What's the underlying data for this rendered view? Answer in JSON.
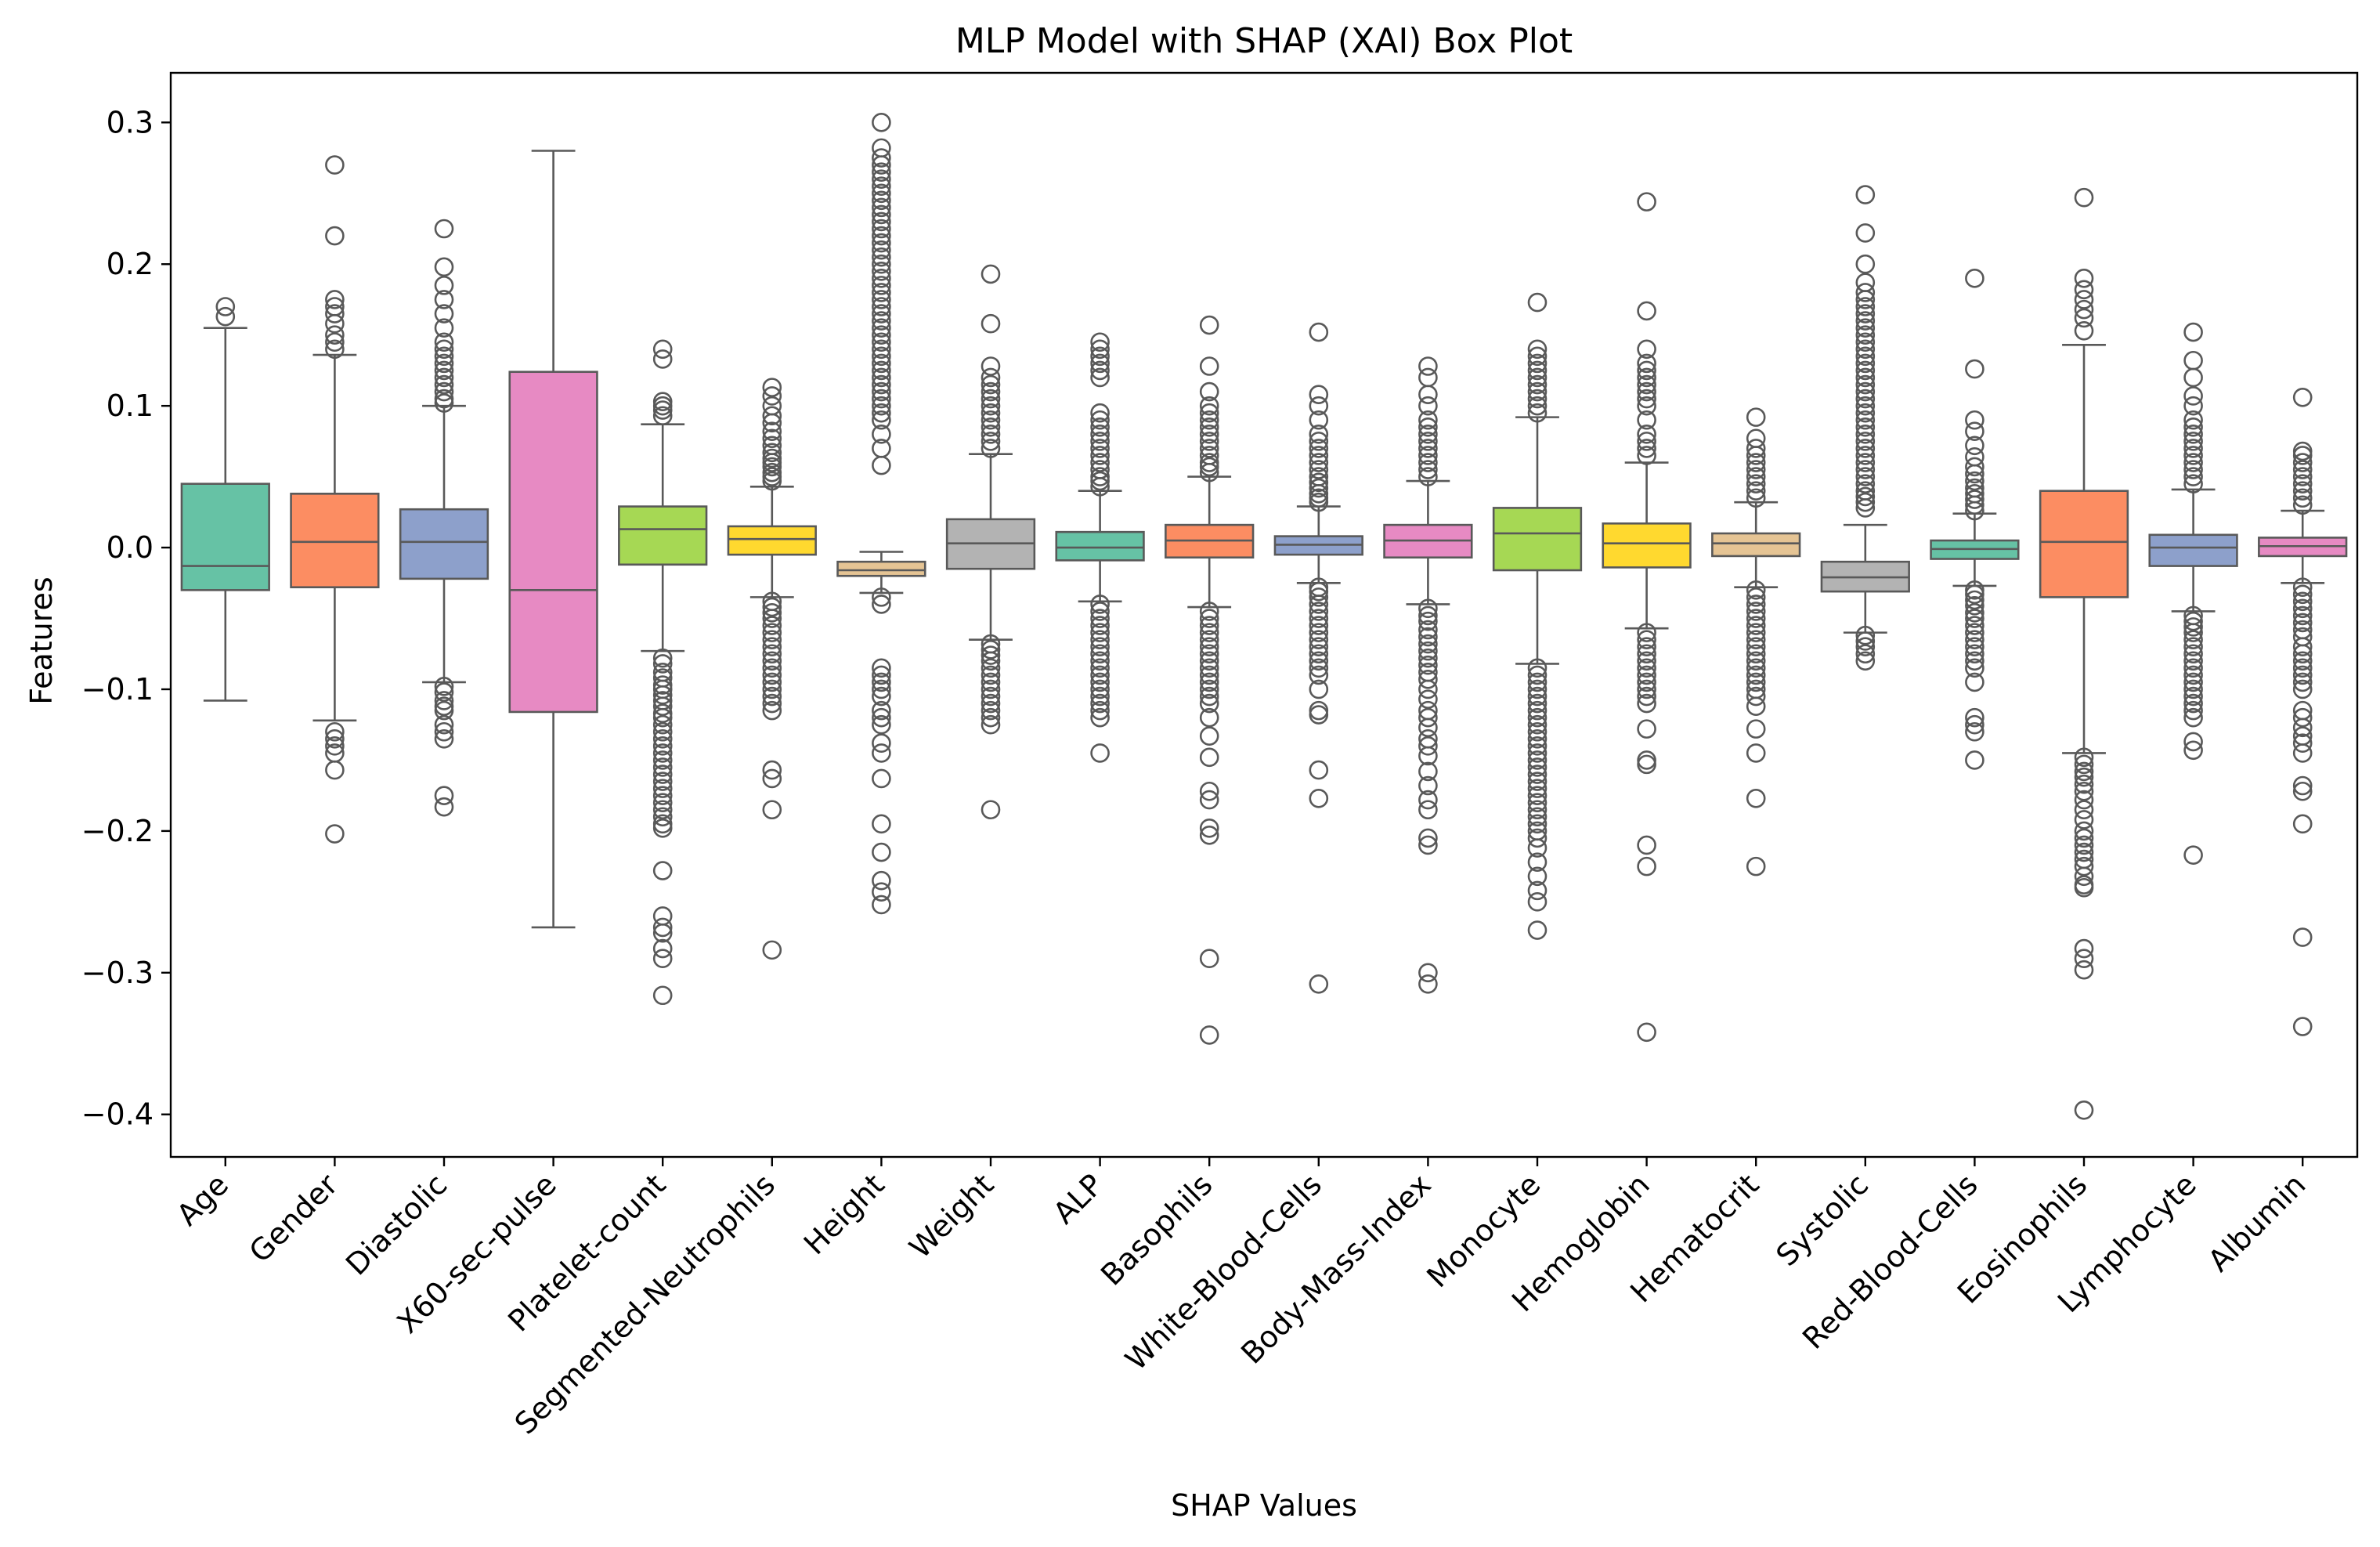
{
  "chart_data": {
    "type": "box",
    "title": "MLP Model with SHAP (XAI) Box Plot",
    "xlabel": "SHAP Values",
    "ylabel": "Features",
    "ylim": [
      -0.43,
      0.335
    ],
    "yticks": [
      0.3,
      0.2,
      0.1,
      0.0,
      -0.1,
      -0.2,
      -0.3,
      -0.4
    ],
    "ytick_labels": [
      "0.3",
      "0.2",
      "0.1",
      "0.0",
      "−0.1",
      "−0.2",
      "−0.3",
      "−0.4"
    ],
    "grid": false,
    "series": [
      {
        "category": "Age",
        "color": "#66c2a5",
        "q1": -0.03,
        "median": -0.013,
        "q3": 0.045,
        "whisker_low": -0.108,
        "whisker_high": 0.155,
        "outliers": [
          0.163,
          0.17
        ]
      },
      {
        "category": "Gender",
        "color": "#fc8d62",
        "q1": -0.028,
        "median": 0.004,
        "q3": 0.038,
        "whisker_low": -0.122,
        "whisker_high": 0.136,
        "outliers": [
          0.14,
          0.145,
          0.15,
          0.158,
          0.165,
          0.17,
          0.175,
          0.22,
          0.27,
          -0.13,
          -0.135,
          -0.14,
          -0.145,
          -0.157,
          -0.202
        ]
      },
      {
        "category": "Diastolic",
        "color": "#8da0cb",
        "q1": -0.022,
        "median": 0.004,
        "q3": 0.027,
        "whisker_low": -0.095,
        "whisker_high": 0.1,
        "outliers": [
          0.102,
          0.105,
          0.11,
          0.115,
          0.12,
          0.125,
          0.13,
          0.135,
          0.14,
          0.145,
          0.155,
          0.165,
          0.175,
          0.185,
          0.198,
          0.225,
          -0.098,
          -0.102,
          -0.108,
          -0.112,
          -0.115,
          -0.125,
          -0.13,
          -0.135,
          -0.175,
          -0.183
        ]
      },
      {
        "category": "X60-sec-pulse",
        "color": "#e78ac3",
        "q1": -0.116,
        "median": -0.03,
        "q3": 0.124,
        "whisker_low": -0.268,
        "whisker_high": 0.28,
        "outliers": []
      },
      {
        "category": "Platelet-count",
        "color": "#a6d854",
        "q1": -0.012,
        "median": 0.013,
        "q3": 0.029,
        "whisker_low": -0.073,
        "whisker_high": 0.087,
        "outliers": [
          0.093,
          0.097,
          0.1,
          0.103,
          0.133,
          0.14,
          -0.078,
          -0.082,
          -0.088,
          -0.092,
          -0.097,
          -0.1,
          -0.104,
          -0.108,
          -0.112,
          -0.117,
          -0.12,
          -0.125,
          -0.13,
          -0.135,
          -0.14,
          -0.145,
          -0.15,
          -0.155,
          -0.16,
          -0.165,
          -0.17,
          -0.175,
          -0.18,
          -0.185,
          -0.19,
          -0.195,
          -0.198,
          -0.228,
          -0.26,
          -0.268,
          -0.272,
          -0.283,
          -0.29,
          -0.316
        ]
      },
      {
        "category": "Segmented-Neutrophils",
        "color": "#ffd92f",
        "q1": -0.005,
        "median": 0.006,
        "q3": 0.015,
        "whisker_low": -0.035,
        "whisker_high": 0.043,
        "outliers": [
          0.047,
          0.05,
          0.053,
          0.057,
          0.06,
          0.063,
          0.067,
          0.072,
          0.077,
          0.082,
          0.088,
          0.093,
          0.1,
          0.107,
          0.113,
          -0.038,
          -0.042,
          -0.046,
          -0.05,
          -0.055,
          -0.06,
          -0.065,
          -0.07,
          -0.075,
          -0.08,
          -0.085,
          -0.09,
          -0.095,
          -0.1,
          -0.105,
          -0.11,
          -0.115,
          -0.157,
          -0.163,
          -0.185,
          -0.284
        ]
      },
      {
        "category": "Height",
        "color": "#e5c494",
        "q1": -0.02,
        "median": -0.016,
        "q3": -0.01,
        "whisker_low": -0.032,
        "whisker_high": -0.003,
        "outliers": [
          0.058,
          0.07,
          0.08,
          0.09,
          0.095,
          0.1,
          0.105,
          0.11,
          0.115,
          0.12,
          0.125,
          0.13,
          0.135,
          0.14,
          0.145,
          0.15,
          0.155,
          0.16,
          0.165,
          0.17,
          0.175,
          0.18,
          0.185,
          0.19,
          0.195,
          0.2,
          0.205,
          0.21,
          0.215,
          0.22,
          0.225,
          0.23,
          0.235,
          0.24,
          0.245,
          0.25,
          0.255,
          0.26,
          0.265,
          0.27,
          0.275,
          0.282,
          0.3,
          -0.035,
          -0.04,
          -0.085,
          -0.09,
          -0.095,
          -0.1,
          -0.105,
          -0.115,
          -0.12,
          -0.125,
          -0.138,
          -0.145,
          -0.163,
          -0.195,
          -0.215,
          -0.235,
          -0.243,
          -0.252
        ]
      },
      {
        "category": "Weight",
        "color": "#b3b3b3",
        "q1": -0.015,
        "median": 0.003,
        "q3": 0.02,
        "whisker_low": -0.065,
        "whisker_high": 0.066,
        "outliers": [
          0.07,
          0.075,
          0.08,
          0.085,
          0.09,
          0.095,
          0.1,
          0.105,
          0.11,
          0.115,
          0.12,
          0.128,
          0.158,
          0.193,
          -0.068,
          -0.072,
          -0.076,
          -0.08,
          -0.085,
          -0.09,
          -0.095,
          -0.1,
          -0.105,
          -0.11,
          -0.115,
          -0.12,
          -0.125,
          -0.185
        ]
      },
      {
        "category": "ALP",
        "color": "#66c2a5",
        "q1": -0.009,
        "median": 0.0,
        "q3": 0.011,
        "whisker_low": -0.038,
        "whisker_high": 0.04,
        "outliers": [
          0.043,
          0.047,
          0.05,
          0.055,
          0.06,
          0.065,
          0.07,
          0.075,
          0.08,
          0.085,
          0.09,
          0.095,
          0.12,
          0.125,
          0.13,
          0.135,
          0.14,
          0.145,
          -0.04,
          -0.045,
          -0.05,
          -0.055,
          -0.06,
          -0.065,
          -0.07,
          -0.075,
          -0.08,
          -0.085,
          -0.09,
          -0.095,
          -0.1,
          -0.105,
          -0.11,
          -0.115,
          -0.12,
          -0.145
        ]
      },
      {
        "category": "Basophils",
        "color": "#fc8d62",
        "q1": -0.007,
        "median": 0.005,
        "q3": 0.016,
        "whisker_low": -0.042,
        "whisker_high": 0.05,
        "outliers": [
          0.053,
          0.057,
          0.06,
          0.065,
          0.07,
          0.075,
          0.08,
          0.085,
          0.09,
          0.095,
          0.1,
          0.11,
          0.128,
          0.157,
          -0.045,
          -0.05,
          -0.055,
          -0.06,
          -0.065,
          -0.07,
          -0.075,
          -0.08,
          -0.085,
          -0.09,
          -0.095,
          -0.1,
          -0.105,
          -0.11,
          -0.12,
          -0.133,
          -0.148,
          -0.172,
          -0.178,
          -0.198,
          -0.203,
          -0.29,
          -0.344
        ]
      },
      {
        "category": "White-Blood-Cells",
        "color": "#8da0cb",
        "q1": -0.005,
        "median": 0.002,
        "q3": 0.008,
        "whisker_low": -0.025,
        "whisker_high": 0.029,
        "outliers": [
          0.032,
          0.035,
          0.038,
          0.042,
          0.046,
          0.05,
          0.055,
          0.06,
          0.065,
          0.07,
          0.075,
          0.08,
          0.09,
          0.1,
          0.108,
          0.152,
          -0.028,
          -0.031,
          -0.035,
          -0.04,
          -0.045,
          -0.05,
          -0.055,
          -0.06,
          -0.065,
          -0.07,
          -0.075,
          -0.08,
          -0.085,
          -0.09,
          -0.1,
          -0.115,
          -0.118,
          -0.157,
          -0.177,
          -0.308
        ]
      },
      {
        "category": "Body-Mass-Index",
        "color": "#e78ac3",
        "q1": -0.007,
        "median": 0.005,
        "q3": 0.016,
        "whisker_low": -0.04,
        "whisker_high": 0.047,
        "outliers": [
          0.05,
          0.055,
          0.06,
          0.065,
          0.07,
          0.075,
          0.08,
          0.085,
          0.09,
          0.1,
          0.108,
          0.12,
          0.128,
          -0.043,
          -0.048,
          -0.052,
          -0.058,
          -0.063,
          -0.068,
          -0.073,
          -0.078,
          -0.083,
          -0.088,
          -0.093,
          -0.1,
          -0.107,
          -0.115,
          -0.12,
          -0.127,
          -0.135,
          -0.14,
          -0.147,
          -0.158,
          -0.168,
          -0.178,
          -0.185,
          -0.205,
          -0.21,
          -0.3,
          -0.308
        ]
      },
      {
        "category": "Monocyte",
        "color": "#a6d854",
        "q1": -0.016,
        "median": 0.01,
        "q3": 0.028,
        "whisker_low": -0.082,
        "whisker_high": 0.092,
        "outliers": [
          0.095,
          0.1,
          0.105,
          0.11,
          0.115,
          0.12,
          0.125,
          0.13,
          0.135,
          0.14,
          0.173,
          -0.085,
          -0.09,
          -0.095,
          -0.1,
          -0.105,
          -0.11,
          -0.115,
          -0.12,
          -0.125,
          -0.13,
          -0.135,
          -0.14,
          -0.145,
          -0.15,
          -0.155,
          -0.16,
          -0.165,
          -0.17,
          -0.175,
          -0.18,
          -0.185,
          -0.19,
          -0.195,
          -0.2,
          -0.205,
          -0.212,
          -0.222,
          -0.232,
          -0.242,
          -0.25,
          -0.27
        ]
      },
      {
        "category": "Hemoglobin",
        "color": "#ffd92f",
        "q1": -0.014,
        "median": 0.003,
        "q3": 0.017,
        "whisker_low": -0.057,
        "whisker_high": 0.06,
        "outliers": [
          0.065,
          0.07,
          0.075,
          0.08,
          0.09,
          0.1,
          0.105,
          0.11,
          0.115,
          0.12,
          0.125,
          0.13,
          0.14,
          0.167,
          0.244,
          -0.06,
          -0.065,
          -0.07,
          -0.075,
          -0.08,
          -0.085,
          -0.09,
          -0.095,
          -0.1,
          -0.105,
          -0.11,
          -0.128,
          -0.15,
          -0.153,
          -0.21,
          -0.225,
          -0.342
        ]
      },
      {
        "category": "Hematocrit",
        "color": "#e5c494",
        "q1": -0.006,
        "median": 0.003,
        "q3": 0.01,
        "whisker_low": -0.028,
        "whisker_high": 0.032,
        "outliers": [
          0.035,
          0.04,
          0.045,
          0.05,
          0.055,
          0.06,
          0.065,
          0.07,
          0.077,
          0.092,
          -0.03,
          -0.035,
          -0.04,
          -0.045,
          -0.05,
          -0.055,
          -0.06,
          -0.065,
          -0.07,
          -0.075,
          -0.08,
          -0.085,
          -0.09,
          -0.095,
          -0.1,
          -0.105,
          -0.112,
          -0.128,
          -0.145,
          -0.177,
          -0.225
        ]
      },
      {
        "category": "Systolic",
        "color": "#b3b3b3",
        "q1": -0.031,
        "median": -0.021,
        "q3": -0.01,
        "whisker_low": -0.06,
        "whisker_high": 0.016,
        "outliers": [
          0.028,
          0.032,
          0.036,
          0.04,
          0.045,
          0.05,
          0.055,
          0.06,
          0.065,
          0.07,
          0.075,
          0.08,
          0.085,
          0.09,
          0.095,
          0.1,
          0.105,
          0.11,
          0.115,
          0.12,
          0.125,
          0.13,
          0.135,
          0.14,
          0.145,
          0.15,
          0.155,
          0.16,
          0.165,
          0.17,
          0.175,
          0.18,
          0.187,
          0.2,
          0.222,
          0.249,
          -0.062,
          -0.066,
          -0.07,
          -0.075,
          -0.08
        ]
      },
      {
        "category": "Red-Blood-Cells",
        "color": "#66c2a5",
        "q1": -0.008,
        "median": -0.001,
        "q3": 0.005,
        "whisker_low": -0.027,
        "whisker_high": 0.024,
        "outliers": [
          0.026,
          0.03,
          0.034,
          0.038,
          0.042,
          0.047,
          0.052,
          0.057,
          0.064,
          0.072,
          0.082,
          0.09,
          0.126,
          0.19,
          -0.03,
          -0.033,
          -0.037,
          -0.041,
          -0.046,
          -0.05,
          -0.055,
          -0.06,
          -0.065,
          -0.07,
          -0.075,
          -0.08,
          -0.085,
          -0.095,
          -0.12,
          -0.125,
          -0.13,
          -0.15
        ]
      },
      {
        "category": "Eosinophils",
        "color": "#fc8d62",
        "q1": -0.035,
        "median": 0.004,
        "q3": 0.04,
        "whisker_low": -0.145,
        "whisker_high": 0.143,
        "outliers": [
          0.153,
          0.162,
          0.168,
          0.175,
          0.182,
          0.19,
          0.247,
          -0.148,
          -0.153,
          -0.158,
          -0.162,
          -0.167,
          -0.172,
          -0.178,
          -0.185,
          -0.192,
          -0.2,
          -0.205,
          -0.21,
          -0.215,
          -0.22,
          -0.225,
          -0.232,
          -0.238,
          -0.24,
          -0.283,
          -0.29,
          -0.298,
          -0.397
        ]
      },
      {
        "category": "Lymphocyte",
        "color": "#8da0cb",
        "q1": -0.013,
        "median": 0.0,
        "q3": 0.009,
        "whisker_low": -0.045,
        "whisker_high": 0.041,
        "outliers": [
          0.045,
          0.05,
          0.055,
          0.06,
          0.065,
          0.07,
          0.075,
          0.08,
          0.085,
          0.09,
          0.1,
          0.107,
          0.12,
          0.132,
          0.152,
          -0.048,
          -0.052,
          -0.056,
          -0.06,
          -0.065,
          -0.07,
          -0.075,
          -0.08,
          -0.085,
          -0.09,
          -0.095,
          -0.1,
          -0.105,
          -0.11,
          -0.115,
          -0.12,
          -0.137,
          -0.143,
          -0.217
        ]
      },
      {
        "category": "Albumin",
        "color": "#e78ac3",
        "q1": -0.006,
        "median": 0.001,
        "q3": 0.007,
        "whisker_low": -0.025,
        "whisker_high": 0.026,
        "outliers": [
          0.03,
          0.035,
          0.04,
          0.045,
          0.05,
          0.055,
          0.06,
          0.065,
          0.068,
          0.106,
          -0.028,
          -0.033,
          -0.038,
          -0.043,
          -0.048,
          -0.053,
          -0.058,
          -0.063,
          -0.07,
          -0.075,
          -0.08,
          -0.085,
          -0.09,
          -0.095,
          -0.1,
          -0.115,
          -0.12,
          -0.127,
          -0.133,
          -0.138,
          -0.145,
          -0.168,
          -0.172,
          -0.195,
          -0.275,
          -0.338
        ]
      }
    ]
  }
}
